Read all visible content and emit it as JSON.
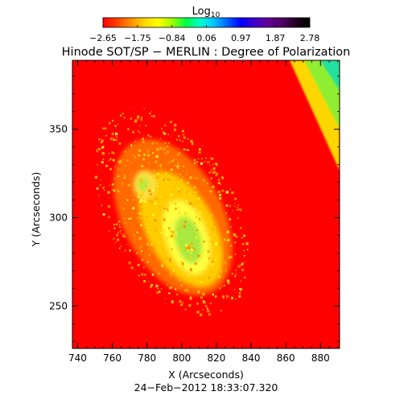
{
  "colorbar": {
    "label_main": "Log",
    "label_sub": "10",
    "ticks": [
      "−2.65",
      "−1.75",
      "−0.84",
      "0.06",
      "0.97",
      "1.87",
      "2.78"
    ],
    "palette": [
      "#ff0000",
      "#ff4000",
      "#ff8c00",
      "#ffd700",
      "#ffff00",
      "#a0ff00",
      "#00ff40",
      "#00ffc8",
      "#00c8ff",
      "#0064ff",
      "#0000ff",
      "#4000c8",
      "#640096",
      "#500064",
      "#200020",
      "#000000"
    ]
  },
  "plot": {
    "title": "Hinode SOT/SP − MERLIN : Degree of Polarization",
    "xlabel": "X (Arcseconds)",
    "ylabel": "Y (Arcseconds)",
    "timestamp": "24−Feb−2012 18:33:07.320",
    "xlim": [
      737,
      891
    ],
    "ylim": [
      226,
      389
    ],
    "xticks": [
      740,
      760,
      780,
      800,
      820,
      840,
      860,
      880
    ],
    "yticks": [
      250,
      300,
      350
    ],
    "background_color": "#ff0000"
  }
}
